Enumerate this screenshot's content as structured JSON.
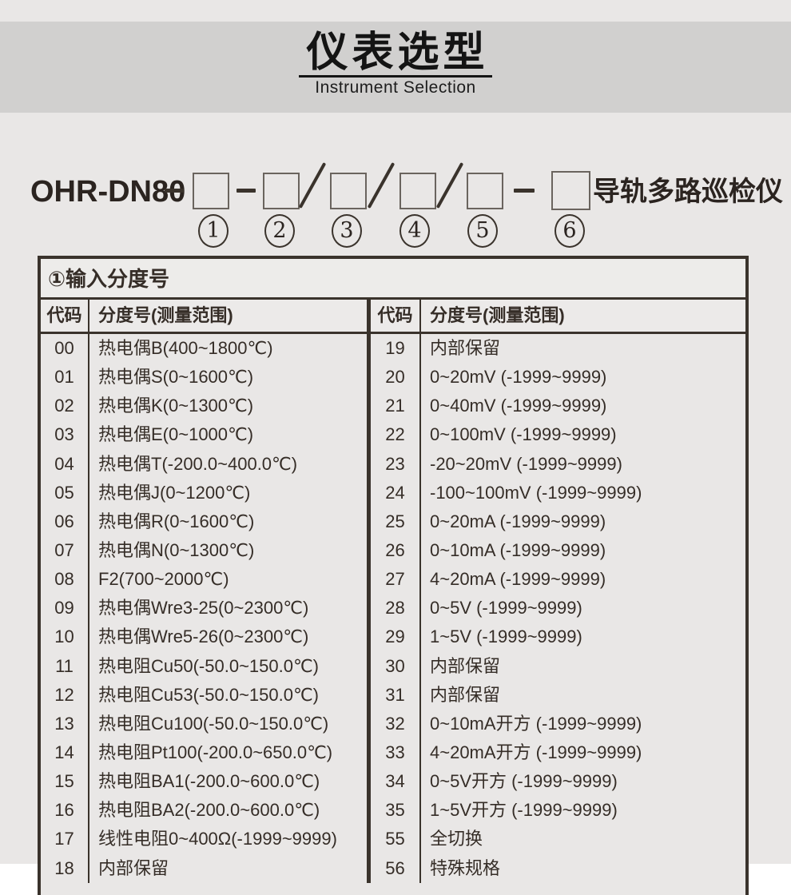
{
  "colors": {
    "page_bg": "#e9e7e6",
    "banner_bg": "#d1d0cf",
    "ink": "#352d27",
    "border": "#3a332c"
  },
  "header": {
    "title": "仪表选型",
    "subtitle": "Instrument Selection"
  },
  "model": {
    "prefix": "OHR-DN80",
    "suffix": "导轨多路巡检仪",
    "positions": [
      "1",
      "2",
      "3",
      "4",
      "5",
      "6"
    ]
  },
  "table": {
    "title": "①输入分度号",
    "code_header": "代码",
    "range_header": "分度号(测量范围)",
    "left_rows": [
      {
        "code": "00",
        "label": "热电偶B(400~1800℃)"
      },
      {
        "code": "01",
        "label": "热电偶S(0~1600℃)"
      },
      {
        "code": "02",
        "label": "热电偶K(0~1300℃)"
      },
      {
        "code": "03",
        "label": "热电偶E(0~1000℃)"
      },
      {
        "code": "04",
        "label": "热电偶T(-200.0~400.0℃)"
      },
      {
        "code": "05",
        "label": "热电偶J(0~1200℃)"
      },
      {
        "code": "06",
        "label": "热电偶R(0~1600℃)"
      },
      {
        "code": "07",
        "label": "热电偶N(0~1300℃)"
      },
      {
        "code": "08",
        "label": "F2(700~2000℃)"
      },
      {
        "code": "09",
        "label": "热电偶Wre3-25(0~2300℃)"
      },
      {
        "code": "10",
        "label": "热电偶Wre5-26(0~2300℃)"
      },
      {
        "code": "11",
        "label": "热电阻Cu50(-50.0~150.0℃)"
      },
      {
        "code": "12",
        "label": "热电阻Cu53(-50.0~150.0℃)"
      },
      {
        "code": "13",
        "label": "热电阻Cu100(-50.0~150.0℃)"
      },
      {
        "code": "14",
        "label": "热电阻Pt100(-200.0~650.0℃)"
      },
      {
        "code": "15",
        "label": "热电阻BA1(-200.0~600.0℃)"
      },
      {
        "code": "16",
        "label": "热电阻BA2(-200.0~600.0℃)"
      },
      {
        "code": "17",
        "label": "线性电阻0~400Ω(-1999~9999)"
      },
      {
        "code": "18",
        "label": "内部保留"
      }
    ],
    "right_rows": [
      {
        "code": "19",
        "label": "内部保留"
      },
      {
        "code": "20",
        "label": "0~20mV (-1999~9999)"
      },
      {
        "code": "21",
        "label": "0~40mV (-1999~9999)"
      },
      {
        "code": "22",
        "label": "0~100mV (-1999~9999)"
      },
      {
        "code": "23",
        "label": "-20~20mV (-1999~9999)"
      },
      {
        "code": "24",
        "label": "-100~100mV (-1999~9999)"
      },
      {
        "code": "25",
        "label": "0~20mA (-1999~9999)"
      },
      {
        "code": "26",
        "label": "0~10mA (-1999~9999)"
      },
      {
        "code": "27",
        "label": "4~20mA (-1999~9999)"
      },
      {
        "code": "28",
        "label": "0~5V (-1999~9999)"
      },
      {
        "code": "29",
        "label": "1~5V (-1999~9999)"
      },
      {
        "code": "30",
        "label": "内部保留"
      },
      {
        "code": "31",
        "label": "内部保留"
      },
      {
        "code": "32",
        "label": "0~10mA开方 (-1999~9999)"
      },
      {
        "code": "33",
        "label": "4~20mA开方 (-1999~9999)"
      },
      {
        "code": "34",
        "label": "0~5V开方 (-1999~9999)"
      },
      {
        "code": "35",
        "label": "1~5V开方 (-1999~9999)"
      },
      {
        "code": "55",
        "label": "全切换"
      },
      {
        "code": "56",
        "label": "特殊规格"
      }
    ]
  }
}
